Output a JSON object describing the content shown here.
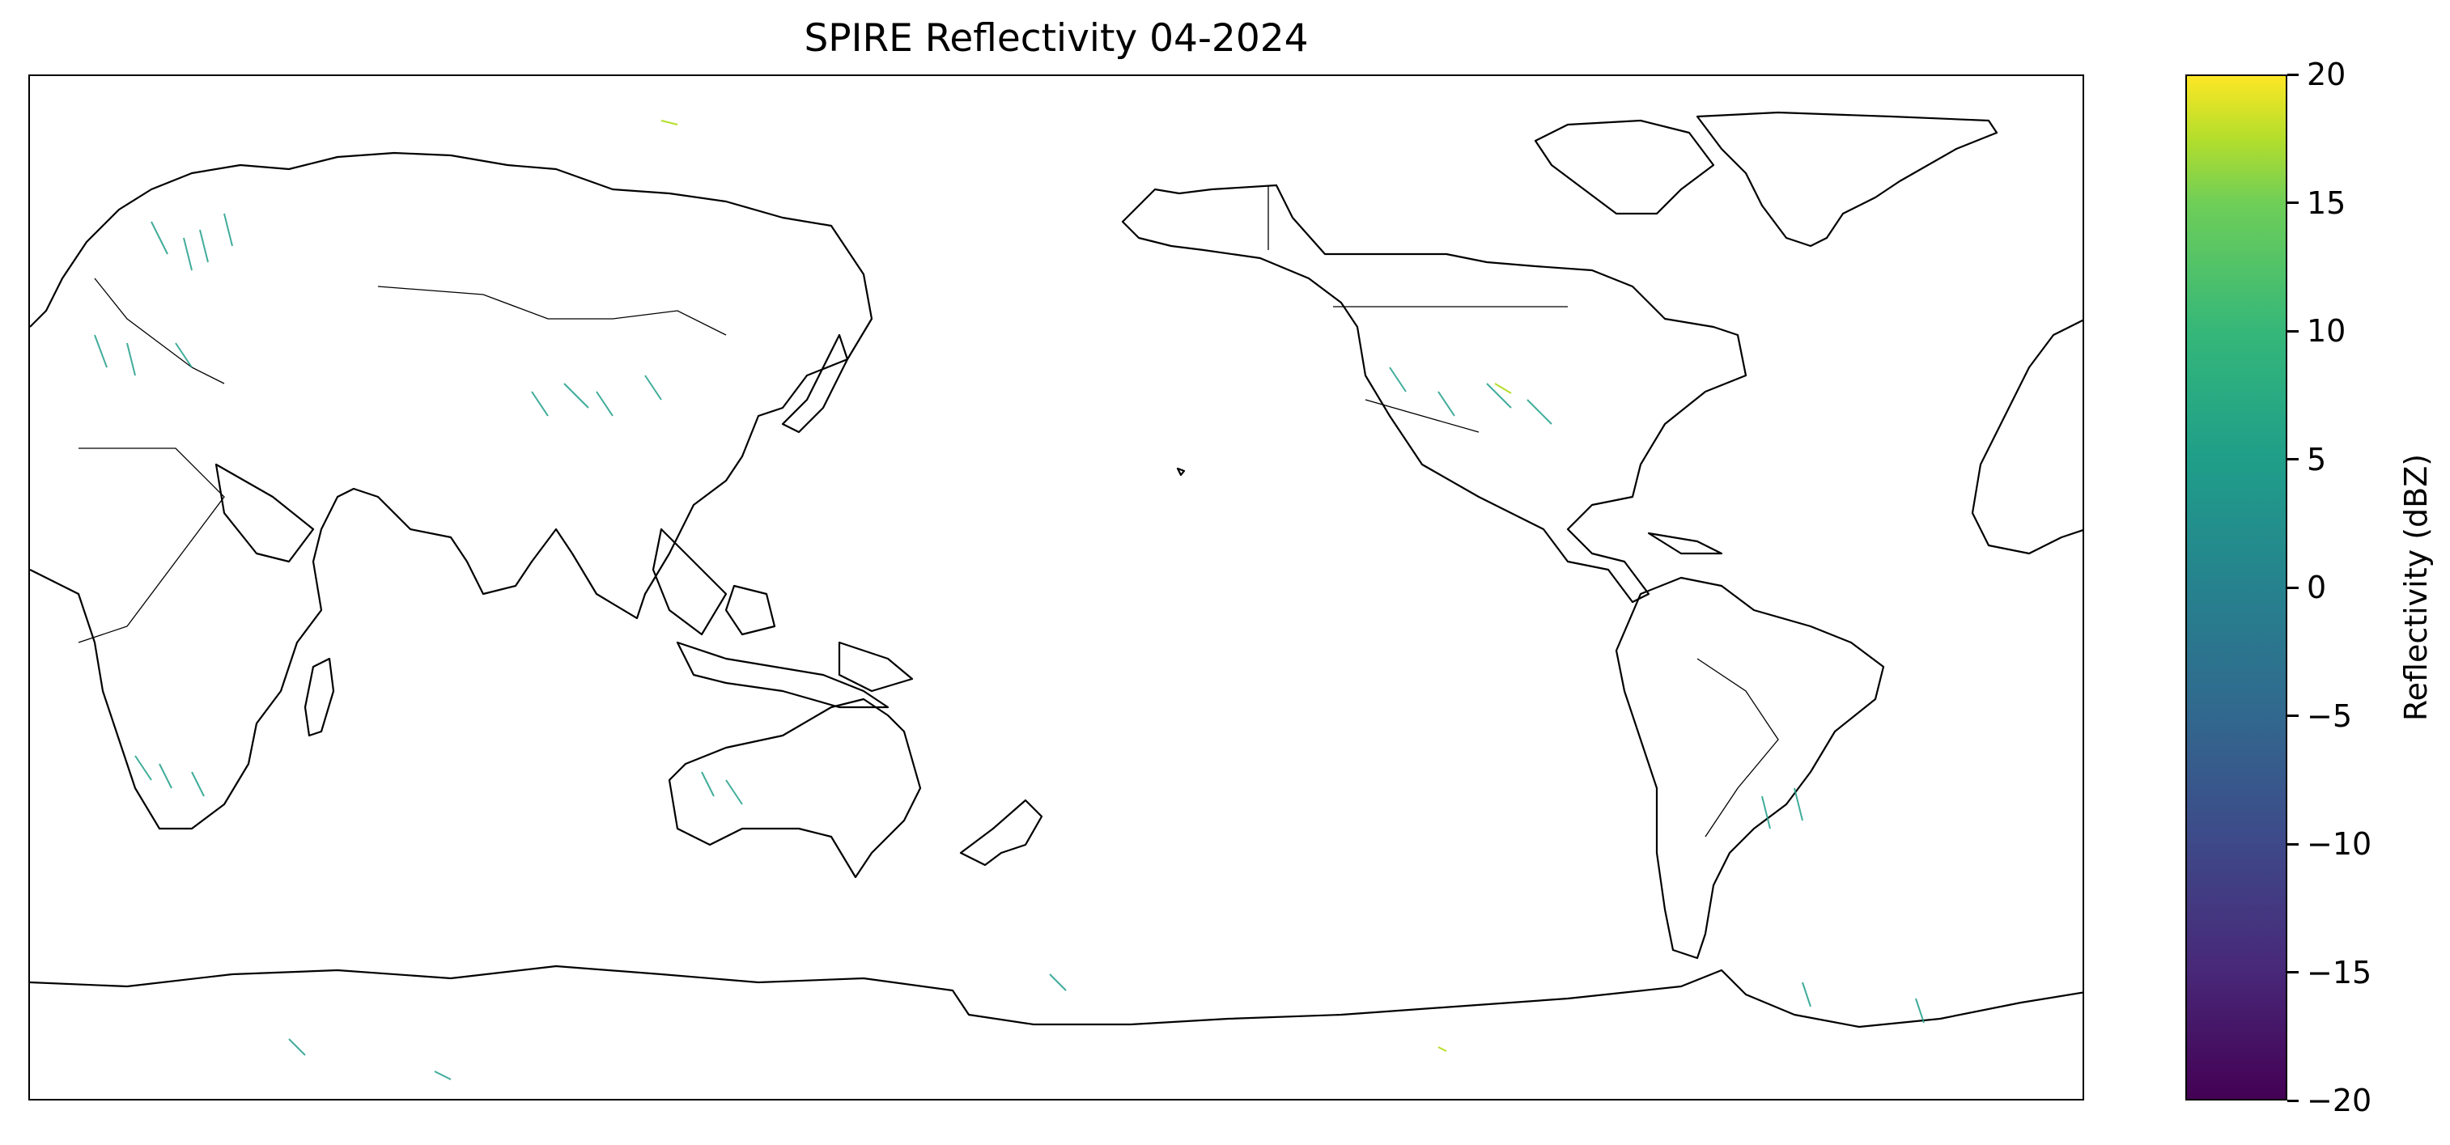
{
  "title": "SPIRE Reflectivity 04-2024",
  "colorbar": {
    "label": "Reflectivity (dBZ)",
    "colormap": "viridis",
    "range": [
      -20,
      20
    ],
    "ticks": [
      "20",
      "15",
      "10",
      "5",
      "0",
      "−5",
      "−10",
      "−15",
      "−20"
    ]
  },
  "map": {
    "projection": "PlateCarree",
    "central_longitude": 180,
    "features": [
      "coastlines",
      "country-borders"
    ],
    "line_color": "#000000",
    "observation_color_dominant": "#1f9e89"
  },
  "chart_data": {
    "type": "heatmap",
    "title": "SPIRE Reflectivity 04-2024",
    "colorbar_label": "Reflectivity (dBZ)",
    "clim": [
      -20,
      20
    ],
    "colorbar_ticks": [
      20,
      15,
      10,
      5,
      0,
      -5,
      -10,
      -15,
      -20
    ],
    "regions_with_returns": [
      {
        "region": "Europe / Mediterranean",
        "approx_dbz": 3
      },
      {
        "region": "Central Asia / China",
        "approx_dbz": 3
      },
      {
        "region": "Continental United States",
        "approx_dbz": 4
      },
      {
        "region": "Southern Africa",
        "approx_dbz": 3
      },
      {
        "region": "Western Australia",
        "approx_dbz": 3
      },
      {
        "region": "Antarctica",
        "approx_dbz": 3
      }
    ]
  }
}
